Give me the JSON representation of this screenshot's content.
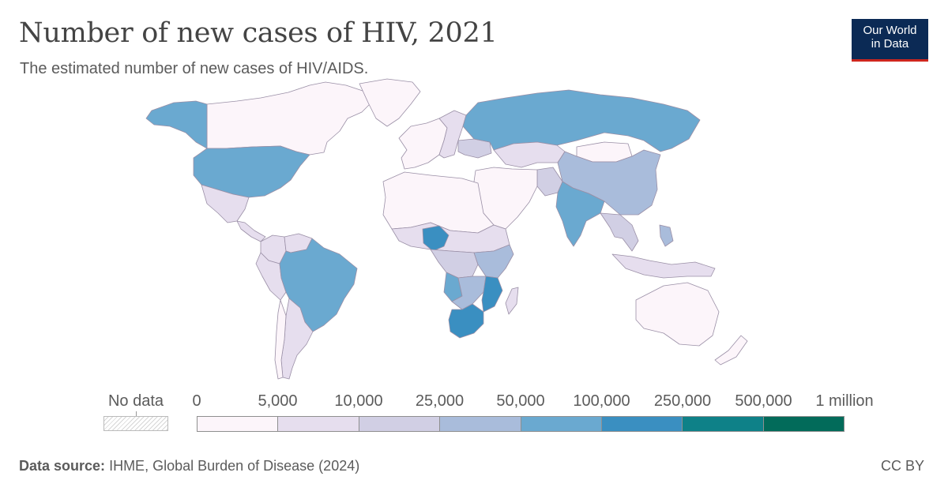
{
  "header": {
    "title": "Number of new cases of HIV, 2021",
    "subtitle": "The estimated number of new cases of HIV/AIDS."
  },
  "logo": {
    "line1": "Our World",
    "line2": "in Data"
  },
  "legend": {
    "no_data_label": "No data",
    "tick_labels": [
      "0",
      "5,000",
      "10,000",
      "25,000",
      "50,000",
      "100,000",
      "250,000",
      "500,000",
      "1 million"
    ],
    "bin_colors": [
      "#fcf5fa",
      "#e6deee",
      "#d1cfe4",
      "#a9bcdb",
      "#6aa9d0",
      "#3a8fc1",
      "#0e8188",
      "#026b5a"
    ]
  },
  "map_data": {
    "metric": "new HIV cases",
    "year": 2021,
    "regions": [
      {
        "id": "canada",
        "bin": 0
      },
      {
        "id": "greenland",
        "bin": 0
      },
      {
        "id": "alaska",
        "bin": 4
      },
      {
        "id": "usa",
        "bin": 4
      },
      {
        "id": "mexico",
        "bin": 1
      },
      {
        "id": "central-america",
        "bin": 1
      },
      {
        "id": "colombia",
        "bin": 1
      },
      {
        "id": "venezuela",
        "bin": 1
      },
      {
        "id": "brazil",
        "bin": 4
      },
      {
        "id": "peru",
        "bin": 1
      },
      {
        "id": "argentina",
        "bin": 1
      },
      {
        "id": "chile",
        "bin": 0
      },
      {
        "id": "western-europe",
        "bin": 0
      },
      {
        "id": "eastern-europe",
        "bin": 1
      },
      {
        "id": "ukraine",
        "bin": 2
      },
      {
        "id": "russia",
        "bin": 4
      },
      {
        "id": "kazakhstan",
        "bin": 1
      },
      {
        "id": "mongolia",
        "bin": 0
      },
      {
        "id": "china",
        "bin": 3
      },
      {
        "id": "india",
        "bin": 4
      },
      {
        "id": "middle-east",
        "bin": 0
      },
      {
        "id": "pakistan",
        "bin": 2
      },
      {
        "id": "north-africa",
        "bin": 0
      },
      {
        "id": "sahel",
        "bin": 1
      },
      {
        "id": "nigeria",
        "bin": 5
      },
      {
        "id": "central-africa",
        "bin": 2
      },
      {
        "id": "east-africa",
        "bin": 3
      },
      {
        "id": "angola",
        "bin": 4
      },
      {
        "id": "mozambique",
        "bin": 5
      },
      {
        "id": "south-africa",
        "bin": 5
      },
      {
        "id": "southern-africa",
        "bin": 3
      },
      {
        "id": "madagascar",
        "bin": 1
      },
      {
        "id": "southeast-asia",
        "bin": 2
      },
      {
        "id": "philippines",
        "bin": 3
      },
      {
        "id": "indonesia",
        "bin": 1
      },
      {
        "id": "australia",
        "bin": 0
      },
      {
        "id": "new-zealand",
        "bin": 0
      }
    ]
  },
  "footer": {
    "source_label": "Data source:",
    "source_text": "IHME, Global Burden of Disease (2024)",
    "license": "CC BY"
  }
}
